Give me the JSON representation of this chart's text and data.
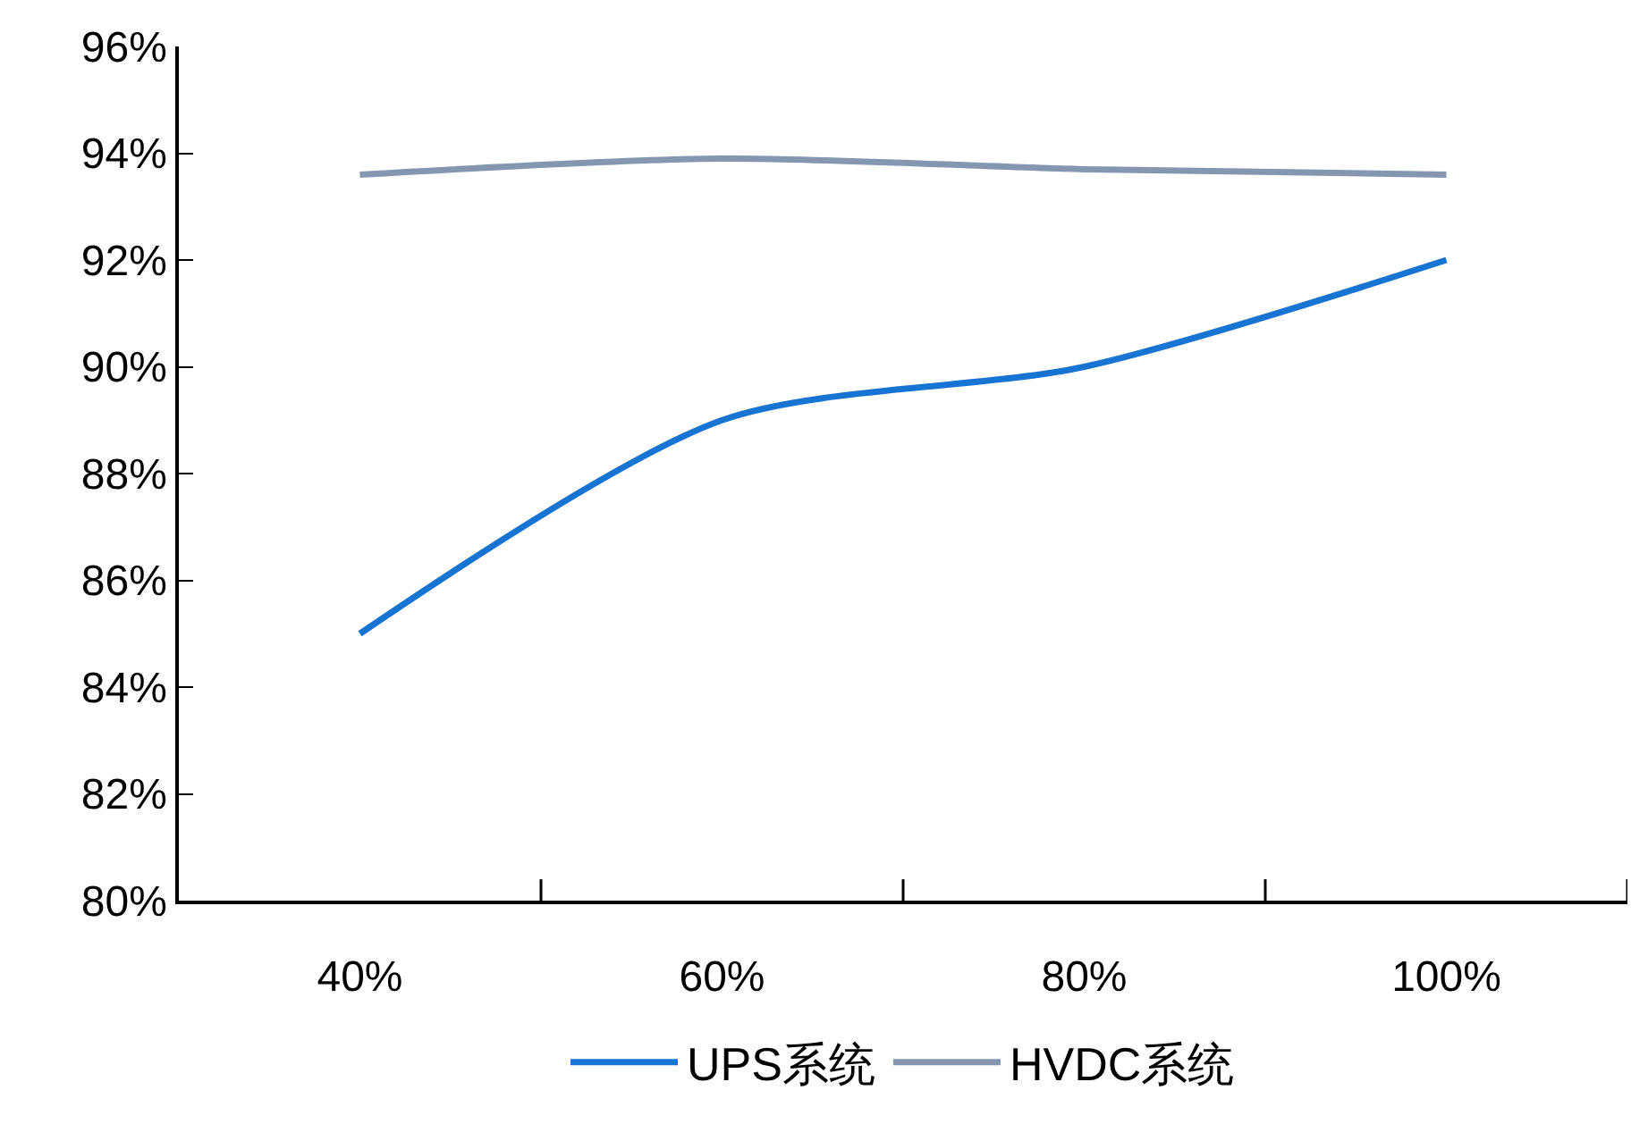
{
  "chart_data": {
    "type": "line",
    "categories": [
      "40%",
      "60%",
      "80%",
      "100%"
    ],
    "series": [
      {
        "name": "UPS系统",
        "color": "#1874d2",
        "values": [
          85.0,
          89.0,
          90.0,
          92.0
        ]
      },
      {
        "name": "HVDC系统",
        "color": "#8497b0",
        "values": [
          93.6,
          93.9,
          93.7,
          93.6
        ]
      }
    ],
    "ylim": [
      80,
      96
    ],
    "yticks": [
      {
        "value": 80,
        "label": "80%"
      },
      {
        "value": 82,
        "label": "82%"
      },
      {
        "value": 84,
        "label": "84%"
      },
      {
        "value": 86,
        "label": "86%"
      },
      {
        "value": 88,
        "label": "88%"
      },
      {
        "value": 90,
        "label": "90%"
      },
      {
        "value": 92,
        "label": "92%"
      },
      {
        "value": 94,
        "label": "94%"
      },
      {
        "value": 96,
        "label": "96%"
      }
    ],
    "grid": false,
    "legend": "bottom",
    "marker": "none",
    "line_style": "solid"
  }
}
